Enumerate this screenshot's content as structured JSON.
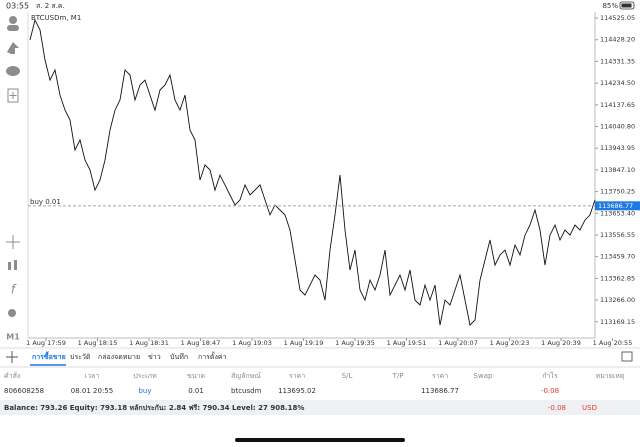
{
  "status_bar": {
    "time": "03:55",
    "date": "ส. 2 ส.ค.",
    "battery": "85%"
  },
  "chart": {
    "type": "line",
    "symbol": "BTCUSDm, M1",
    "position_label": "buy 0.01",
    "current_price": 113686.77,
    "color": "#111111",
    "values": [
      114427,
      114516,
      114472,
      114338,
      114248,
      114293,
      114181,
      114114,
      114070,
      113936,
      113981,
      113891,
      113847,
      113757,
      113802,
      113891,
      114025,
      114114,
      114159,
      114293,
      114271,
      114159,
      114226,
      114248,
      114181,
      114114,
      114204,
      114226,
      114271,
      114159,
      114114,
      114181,
      114025,
      113981,
      113802,
      113869,
      113847,
      113757,
      113824,
      113780,
      113735,
      113690,
      113713,
      113780,
      113735,
      113757,
      113780,
      113713,
      113646,
      113690,
      113668,
      113646,
      113579,
      113445,
      113311,
      113288,
      113333,
      113378,
      113355,
      113266,
      113489,
      113646,
      113824,
      113579,
      113400,
      113489,
      113311,
      113266,
      113355,
      113311,
      113378,
      113489,
      113288,
      113333,
      113378,
      113311,
      113400,
      113266,
      113244,
      113333,
      113266,
      113333,
      113154,
      113266,
      113244,
      113311,
      113378,
      113266,
      113154,
      113177,
      113355,
      113445,
      113534,
      113422,
      113467,
      113489,
      113422,
      113512,
      113467,
      113556,
      113601,
      113668,
      113579,
      113422,
      113556,
      113601,
      113534,
      113579,
      113556,
      113601,
      113579,
      113623,
      113646,
      113713
    ],
    "ylim": [
      113110,
      114561
    ],
    "yticks": [
      114525.05,
      {
        "value": 114428.2,
        "label": "114428.20"
      },
      114331.35,
      {
        "value": 114234.5,
        "label": "114234.50"
      },
      114137.65,
      {
        "value": 114040.8,
        "label": "114040.80"
      },
      113943.95,
      {
        "value": 113847.1,
        "label": "113847.10"
      },
      113750.25,
      {
        "value": 113653.4,
        "label": "113653.40"
      },
      113556.55,
      {
        "value": 113459.7,
        "label": "113459.70"
      },
      113362.85,
      {
        "value": 113266,
        "label": "113266.00"
      },
      113169.15
    ],
    "x_labels": [
      "1 Aug 17:59",
      "1 Aug 18:15",
      "1 Aug 18:31",
      "1 Aug 18:47",
      "1 Aug 19:03",
      "1 Aug 19:19",
      "1 Aug 19:35",
      "1 Aug 19:51",
      "1 Aug 20:07",
      "1 Aug 20:23",
      "1 Aug 20:39",
      "1 Aug 20:55"
    ]
  },
  "tabs": [
    "การซื้อขาย",
    "ประวัติ",
    "กล่องจดหมาย",
    "ข่าว",
    "บันทึก",
    "การตั้งค่า"
  ],
  "table": {
    "columns": [
      "คำสั่ง",
      "เวลา",
      "ประเภท",
      "ขนาด",
      "สัญลักษณ์",
      "ราคา",
      "S/L",
      "T/P",
      "ราคา",
      "Swap",
      "กำไร",
      "หมายเหตุ"
    ],
    "row": {
      "order": "806608258",
      "time": "08.01 20:55",
      "type": "buy",
      "size": "0.01",
      "symbol": "btcusdm",
      "open_price": "113695.02",
      "price": "113686.77",
      "profit": "-0.08"
    }
  },
  "balance": {
    "text": "Balance: 793.26 Equity: 793.18 หลักประกัน: 2.84 ฟรี: 790.34 Level: 27 908.18%",
    "profit": "-0.08",
    "currency": "USD"
  }
}
